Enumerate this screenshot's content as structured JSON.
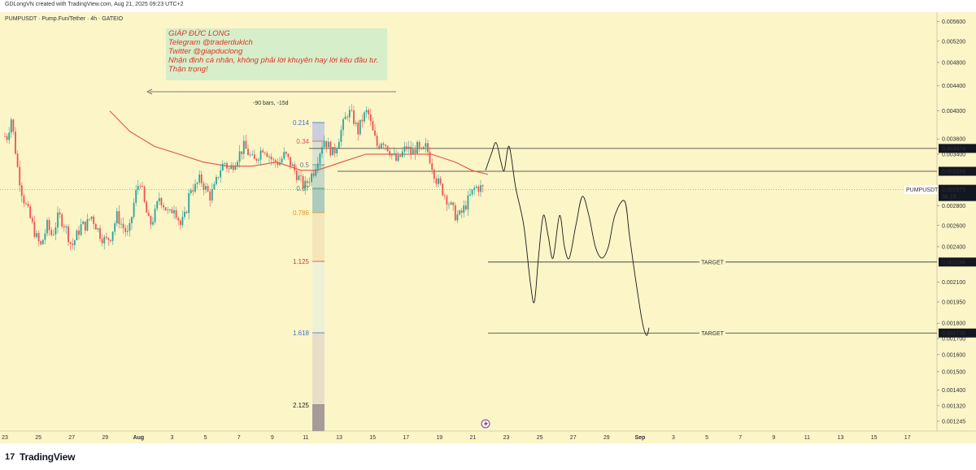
{
  "header": {
    "attribution": "GDLongVN created with TradingView.com, Aug 21, 2025 09:23 UTC+2"
  },
  "footer": {
    "logo_mark": "17",
    "brand": "TradingView"
  },
  "colors": {
    "background": "#fbf5c8",
    "bull": "#26a69a",
    "bear": "#ef5350",
    "ma": "#e0534d",
    "note_bg": "#d6eec9",
    "note_text": "#e0342a",
    "axis_bg": "#fbf5c8"
  },
  "chart_data": {
    "type": "candlestick",
    "symbol_line": "PUMPUSDT · Pump.Fun/Tether · 4h · GATEIO",
    "price_scale": "log",
    "y_range": [
      0.0012,
      0.0058
    ],
    "y_ticks": [
      "0.005600",
      "0.005200",
      "0.004800",
      "0.004400",
      "0.004000",
      "0.003600",
      "0.003400",
      "0.002800",
      "0.002600",
      "0.002400",
      "0.002100",
      "0.001950",
      "0.001800",
      "0.001700",
      "0.001600",
      "0.001500",
      "0.001400",
      "0.001320",
      "0.001245"
    ],
    "x_ticks": [
      "23",
      "25",
      "27",
      "29",
      "Aug",
      "3",
      "5",
      "7",
      "9",
      "11",
      "13",
      "15",
      "17",
      "19",
      "21",
      "23",
      "25",
      "27",
      "29",
      "Sep",
      "3",
      "5",
      "7",
      "9",
      "11",
      "13",
      "15",
      "17"
    ],
    "price_labels": [
      {
        "text": "0.003474",
        "value": 0.003474,
        "style": "dark"
      },
      {
        "text": "0.003188",
        "value": 0.003188,
        "style": "dark"
      },
      {
        "text": "0.002975",
        "value": 0.002975,
        "style": "symbol"
      },
      {
        "text": "0.002266",
        "value": 0.002266,
        "style": "dark"
      },
      {
        "text": "0.001735",
        "value": 0.001735,
        "style": "dark"
      }
    ],
    "current": {
      "symbol": "PUMPUSDT",
      "price": "0.002975",
      "countdown": "36:15"
    },
    "note": {
      "lines": [
        "GIÁP ĐỨC LONG",
        "Telegram @traderduklch",
        "Twitter @giapduclong",
        "Nhận định cá nhân, không phải lời khuyên hay lời kêu đầu tư.",
        "Thận trọng!"
      ]
    },
    "measure_label": "-90 bars, -15d",
    "fib_levels": [
      {
        "label": "0.214",
        "color": "#4a6fc7"
      },
      {
        "label": "0.34",
        "color": "#e0534d"
      },
      {
        "label": "0.5",
        "color": "#777777"
      },
      {
        "label": "0.67",
        "color": "#2d8f67"
      },
      {
        "label": "0.786",
        "color": "#e59a1d"
      },
      {
        "label": "1.125",
        "color": "#d33b3b"
      },
      {
        "label": "1.618",
        "color": "#3f73c8"
      },
      {
        "label": "2.125",
        "color": "#222222"
      }
    ],
    "targets": [
      {
        "label": "TARGET",
        "value": 0.002266
      },
      {
        "label": "TARGET",
        "value": 0.001735
      }
    ],
    "levels": [
      0.003474,
      0.003188
    ],
    "candle_anchors": [
      [
        0,
        0.00375
      ],
      [
        8,
        0.0036
      ],
      [
        14,
        0.0039
      ],
      [
        22,
        0.0032
      ],
      [
        28,
        0.0029
      ],
      [
        36,
        0.0027
      ],
      [
        44,
        0.0025
      ],
      [
        50,
        0.0024
      ],
      [
        58,
        0.0026
      ],
      [
        64,
        0.0025
      ],
      [
        72,
        0.0027
      ],
      [
        80,
        0.0026
      ],
      [
        88,
        0.0024
      ],
      [
        94,
        0.0025
      ],
      [
        100,
        0.0026
      ],
      [
        106,
        0.0026
      ],
      [
        112,
        0.0027
      ],
      [
        118,
        0.0026
      ],
      [
        124,
        0.0025
      ],
      [
        130,
        0.00245
      ],
      [
        136,
        0.0025
      ],
      [
        144,
        0.0027
      ],
      [
        150,
        0.0026
      ],
      [
        158,
        0.0025
      ],
      [
        166,
        0.0029
      ],
      [
        172,
        0.0031
      ],
      [
        178,
        0.0028
      ],
      [
        184,
        0.0026
      ],
      [
        190,
        0.0027
      ],
      [
        196,
        0.0029
      ],
      [
        202,
        0.0028
      ],
      [
        208,
        0.0027
      ],
      [
        214,
        0.0028
      ],
      [
        222,
        0.0026
      ],
      [
        228,
        0.0027
      ],
      [
        234,
        0.003
      ],
      [
        240,
        0.003
      ],
      [
        246,
        0.0031
      ],
      [
        252,
        0.003
      ],
      [
        258,
        0.0029
      ],
      [
        264,
        0.003
      ],
      [
        270,
        0.0032
      ],
      [
        276,
        0.0033
      ],
      [
        282,
        0.0032
      ],
      [
        288,
        0.0033
      ],
      [
        294,
        0.0034
      ],
      [
        300,
        0.0035
      ],
      [
        306,
        0.0034
      ],
      [
        312,
        0.0033
      ],
      [
        318,
        0.0034
      ],
      [
        324,
        0.0035
      ],
      [
        330,
        0.0034
      ],
      [
        336,
        0.0033
      ],
      [
        344,
        0.0033
      ],
      [
        350,
        0.0034
      ],
      [
        356,
        0.0033
      ],
      [
        362,
        0.0032
      ],
      [
        368,
        0.0031
      ],
      [
        374,
        0.003
      ],
      [
        380,
        0.0031
      ],
      [
        386,
        0.0032
      ],
      [
        392,
        0.0034
      ],
      [
        398,
        0.0036
      ],
      [
        404,
        0.0035
      ],
      [
        410,
        0.0034
      ],
      [
        416,
        0.0036
      ],
      [
        422,
        0.0038
      ],
      [
        428,
        0.004
      ],
      [
        434,
        0.0039
      ],
      [
        440,
        0.0037
      ],
      [
        446,
        0.0039
      ],
      [
        452,
        0.004
      ],
      [
        458,
        0.0037
      ],
      [
        464,
        0.0035
      ],
      [
        470,
        0.0036
      ],
      [
        476,
        0.0035
      ],
      [
        482,
        0.0034
      ],
      [
        488,
        0.0033
      ],
      [
        494,
        0.0034
      ],
      [
        500,
        0.0035
      ],
      [
        506,
        0.0034
      ],
      [
        512,
        0.0035
      ],
      [
        518,
        0.0034
      ],
      [
        524,
        0.0035
      ],
      [
        530,
        0.0033
      ],
      [
        536,
        0.0031
      ],
      [
        542,
        0.003
      ],
      [
        548,
        0.0029
      ],
      [
        554,
        0.0028
      ],
      [
        560,
        0.0027
      ],
      [
        566,
        0.0027
      ],
      [
        572,
        0.0028
      ],
      [
        578,
        0.0029
      ],
      [
        584,
        0.003
      ],
      [
        590,
        0.003
      ],
      [
        596,
        0.002975
      ]
    ],
    "ma_anchors": [
      [
        135,
        0.004
      ],
      [
        160,
        0.0037
      ],
      [
        190,
        0.0035
      ],
      [
        220,
        0.0034
      ],
      [
        250,
        0.0033
      ],
      [
        280,
        0.00325
      ],
      [
        310,
        0.00325
      ],
      [
        340,
        0.0033
      ],
      [
        370,
        0.0032
      ],
      [
        390,
        0.0032
      ],
      [
        420,
        0.0033
      ],
      [
        450,
        0.0034
      ],
      [
        470,
        0.0034
      ],
      [
        500,
        0.0034
      ],
      [
        530,
        0.0034
      ],
      [
        560,
        0.0033
      ],
      [
        580,
        0.0032
      ],
      [
        600,
        0.00315
      ]
    ],
    "projection": [
      [
        597,
        0.0032
      ],
      [
        604,
        0.0034
      ],
      [
        610,
        0.00355
      ],
      [
        616,
        0.0033
      ],
      [
        620,
        0.0032
      ],
      [
        626,
        0.0035
      ],
      [
        634,
        0.003
      ],
      [
        644,
        0.0026
      ],
      [
        652,
        0.0021
      ],
      [
        657,
        0.00195
      ],
      [
        662,
        0.0023
      ],
      [
        668,
        0.0027
      ],
      [
        674,
        0.0025
      ],
      [
        680,
        0.0023
      ],
      [
        688,
        0.0027
      ],
      [
        694,
        0.0024
      ],
      [
        700,
        0.0023
      ],
      [
        708,
        0.0026
      ],
      [
        716,
        0.0029
      ],
      [
        724,
        0.0027
      ],
      [
        732,
        0.0024
      ],
      [
        740,
        0.0023
      ],
      [
        748,
        0.0024
      ],
      [
        756,
        0.0027
      ],
      [
        768,
        0.00285
      ],
      [
        774,
        0.0025
      ],
      [
        782,
        0.0021
      ],
      [
        790,
        0.0018
      ],
      [
        795,
        0.00172
      ],
      [
        798,
        0.00177
      ]
    ]
  }
}
